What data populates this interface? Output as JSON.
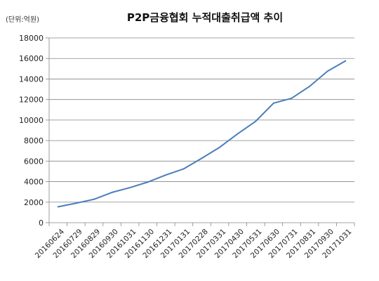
{
  "unit_note": "(단위:억원)",
  "chart_data": {
    "type": "line",
    "title": "P2P금융협회 누적대출취급액 추이",
    "xlabel": "",
    "ylabel": "",
    "ylim": [
      0,
      18000
    ],
    "yticks": [
      0,
      2000,
      4000,
      6000,
      8000,
      10000,
      12000,
      14000,
      16000,
      18000
    ],
    "grid": true,
    "legend": "none",
    "line_color": "#4a7ebb",
    "x": [
      "20160624",
      "20160729",
      "20160829",
      "20160930",
      "20161031",
      "20161130",
      "20161231",
      "20170131",
      "20170228",
      "20170331",
      "20170430",
      "20170531",
      "20170630",
      "20170731",
      "20170831",
      "20170930",
      "20171031"
    ],
    "series": [
      {
        "values": [
          1550,
          1900,
          2280,
          2950,
          3420,
          3960,
          4650,
          5250,
          6280,
          7350,
          8660,
          9880,
          11650,
          12120,
          13280,
          14760,
          15760
        ]
      }
    ]
  }
}
